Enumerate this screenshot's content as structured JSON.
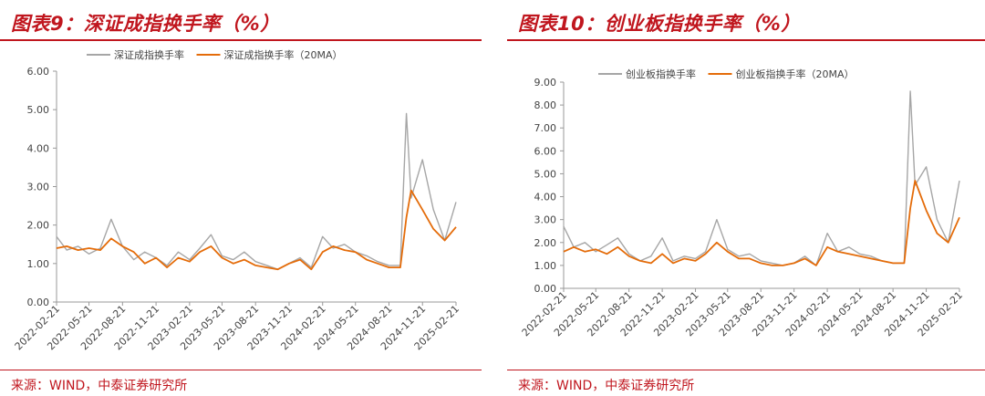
{
  "colors": {
    "accent": "#c0161e",
    "raw": "#a6a6a6",
    "ma": "#e46c0a",
    "axis": "#999999"
  },
  "chart_data": [
    {
      "type": "line",
      "title": "图表9：深证成指换手率（%）",
      "source": "来源：WIND，中泰证券研究所",
      "ylim": [
        0,
        6
      ],
      "y_ticks": [
        "0.00",
        "1.00",
        "2.00",
        "3.00",
        "4.00",
        "5.00",
        "6.00"
      ],
      "x_ticks": [
        "2022-02-21",
        "2022-05-21",
        "2022-08-21",
        "2022-11-21",
        "2023-02-21",
        "2023-05-21",
        "2023-08-21",
        "2023-11-21",
        "2024-02-21",
        "2024-05-21",
        "2024-08-21",
        "2024-11-21",
        "2025-02-21"
      ],
      "grid": false,
      "legend_position": "top",
      "series": [
        {
          "name": "深证成指换手率",
          "x": [
            "2022-02-21",
            "2022-03-21",
            "2022-04-21",
            "2022-05-21",
            "2022-06-21",
            "2022-07-21",
            "2022-08-21",
            "2022-09-21",
            "2022-10-21",
            "2022-11-21",
            "2022-12-21",
            "2023-01-21",
            "2023-02-21",
            "2023-03-21",
            "2023-04-21",
            "2023-05-21",
            "2023-06-21",
            "2023-07-21",
            "2023-08-21",
            "2023-09-21",
            "2023-10-21",
            "2023-11-21",
            "2023-12-21",
            "2024-01-21",
            "2024-02-21",
            "2024-03-21",
            "2024-04-21",
            "2024-05-21",
            "2024-06-21",
            "2024-07-21",
            "2024-08-21",
            "2024-09-21",
            "2024-10-08",
            "2024-10-21",
            "2024-11-21",
            "2024-12-21",
            "2025-01-21",
            "2025-02-21"
          ],
          "y": [
            1.7,
            1.35,
            1.45,
            1.25,
            1.4,
            2.15,
            1.45,
            1.1,
            1.3,
            1.15,
            0.95,
            1.3,
            1.1,
            1.4,
            1.75,
            1.2,
            1.1,
            1.3,
            1.05,
            0.95,
            0.85,
            1.0,
            1.15,
            0.9,
            1.7,
            1.4,
            1.5,
            1.3,
            1.2,
            1.05,
            0.95,
            0.95,
            4.9,
            2.7,
            3.7,
            2.4,
            1.6,
            2.6
          ]
        },
        {
          "name": "深证成指换手率（20MA）",
          "x": [
            "2022-02-21",
            "2022-03-21",
            "2022-04-21",
            "2022-05-21",
            "2022-06-21",
            "2022-07-21",
            "2022-08-21",
            "2022-09-21",
            "2022-10-21",
            "2022-11-21",
            "2022-12-21",
            "2023-01-21",
            "2023-02-21",
            "2023-03-21",
            "2023-04-21",
            "2023-05-21",
            "2023-06-21",
            "2023-07-21",
            "2023-08-21",
            "2023-09-21",
            "2023-10-21",
            "2023-11-21",
            "2023-12-21",
            "2024-01-21",
            "2024-02-21",
            "2024-03-21",
            "2024-04-21",
            "2024-05-21",
            "2024-06-21",
            "2024-07-21",
            "2024-08-21",
            "2024-09-21",
            "2024-10-08",
            "2024-10-21",
            "2024-11-21",
            "2024-12-21",
            "2025-01-21",
            "2025-02-21"
          ],
          "y": [
            1.4,
            1.45,
            1.35,
            1.4,
            1.35,
            1.65,
            1.45,
            1.3,
            1.0,
            1.15,
            0.9,
            1.15,
            1.05,
            1.3,
            1.45,
            1.15,
            1.0,
            1.1,
            0.95,
            0.9,
            0.85,
            1.0,
            1.1,
            0.85,
            1.3,
            1.45,
            1.35,
            1.3,
            1.1,
            1.0,
            0.9,
            0.9,
            2.2,
            2.9,
            2.4,
            1.9,
            1.6,
            1.95
          ]
        }
      ]
    },
    {
      "type": "line",
      "title": "图表10：创业板指换手率（%）",
      "source": "来源：WIND，中泰证券研究所",
      "ylim": [
        0,
        9
      ],
      "y_ticks": [
        "0.00",
        "1.00",
        "2.00",
        "3.00",
        "4.00",
        "5.00",
        "6.00",
        "7.00",
        "8.00",
        "9.00"
      ],
      "x_ticks": [
        "2022-02-21",
        "2022-05-21",
        "2022-08-21",
        "2022-11-21",
        "2023-02-21",
        "2023-05-21",
        "2023-08-21",
        "2023-11-21",
        "2024-02-21",
        "2024-05-21",
        "2024-08-21",
        "2024-11-21",
        "2025-02-21"
      ],
      "grid": false,
      "legend_position": "top",
      "series": [
        {
          "name": "创业板指换手率",
          "x": [
            "2022-02-21",
            "2022-03-21",
            "2022-04-21",
            "2022-05-21",
            "2022-06-21",
            "2022-07-21",
            "2022-08-21",
            "2022-09-21",
            "2022-10-21",
            "2022-11-21",
            "2022-12-21",
            "2023-01-21",
            "2023-02-21",
            "2023-03-21",
            "2023-04-21",
            "2023-05-21",
            "2023-06-21",
            "2023-07-21",
            "2023-08-21",
            "2023-09-21",
            "2023-10-21",
            "2023-11-21",
            "2023-12-21",
            "2024-01-21",
            "2024-02-21",
            "2024-03-21",
            "2024-04-21",
            "2024-05-21",
            "2024-06-21",
            "2024-07-21",
            "2024-08-21",
            "2024-09-21",
            "2024-10-08",
            "2024-10-21",
            "2024-11-21",
            "2024-12-21",
            "2025-01-21",
            "2025-02-21"
          ],
          "y": [
            2.7,
            1.8,
            2.0,
            1.6,
            1.9,
            2.2,
            1.5,
            1.2,
            1.4,
            2.2,
            1.2,
            1.4,
            1.3,
            1.6,
            3.0,
            1.7,
            1.4,
            1.5,
            1.2,
            1.1,
            1.0,
            1.1,
            1.4,
            1.0,
            2.4,
            1.6,
            1.8,
            1.5,
            1.4,
            1.2,
            1.1,
            1.1,
            8.6,
            4.5,
            5.3,
            3.0,
            2.0,
            4.7
          ]
        },
        {
          "name": "创业板指换手率（20MA）",
          "x": [
            "2022-02-21",
            "2022-03-21",
            "2022-04-21",
            "2022-05-21",
            "2022-06-21",
            "2022-07-21",
            "2022-08-21",
            "2022-09-21",
            "2022-10-21",
            "2022-11-21",
            "2022-12-21",
            "2023-01-21",
            "2023-02-21",
            "2023-03-21",
            "2023-04-21",
            "2023-05-21",
            "2023-06-21",
            "2023-07-21",
            "2023-08-21",
            "2023-09-21",
            "2023-10-21",
            "2023-11-21",
            "2023-12-21",
            "2024-01-21",
            "2024-02-21",
            "2024-03-21",
            "2024-04-21",
            "2024-05-21",
            "2024-06-21",
            "2024-07-21",
            "2024-08-21",
            "2024-09-21",
            "2024-10-08",
            "2024-10-21",
            "2024-11-21",
            "2024-12-21",
            "2025-01-21",
            "2025-02-21"
          ],
          "y": [
            1.6,
            1.8,
            1.6,
            1.7,
            1.5,
            1.8,
            1.4,
            1.2,
            1.1,
            1.5,
            1.1,
            1.3,
            1.2,
            1.5,
            2.0,
            1.6,
            1.3,
            1.3,
            1.1,
            1.0,
            1.0,
            1.1,
            1.3,
            1.0,
            1.8,
            1.6,
            1.5,
            1.4,
            1.3,
            1.2,
            1.1,
            1.1,
            3.5,
            4.7,
            3.4,
            2.4,
            2.0,
            3.1
          ]
        }
      ]
    }
  ]
}
